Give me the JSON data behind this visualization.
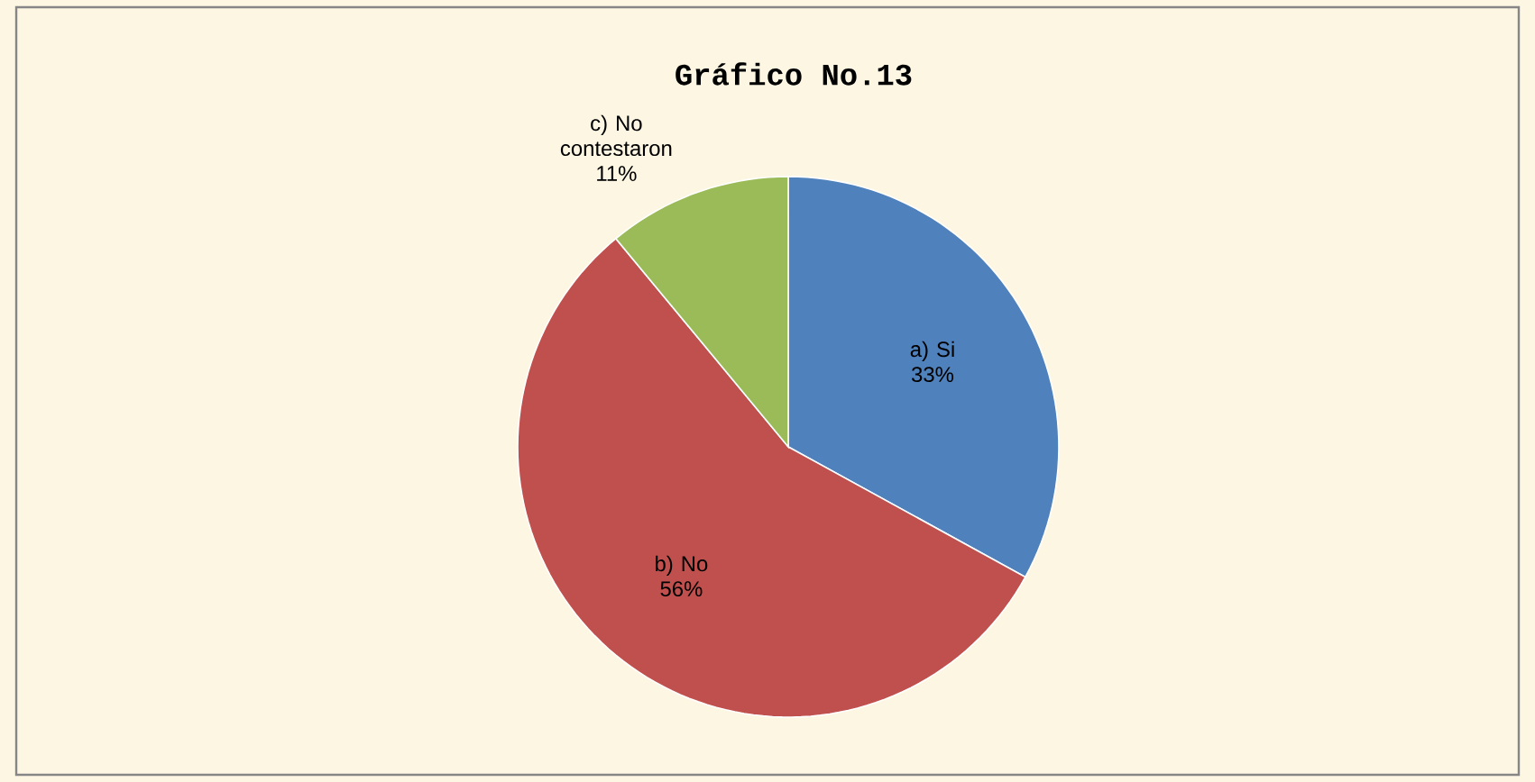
{
  "chart_data": {
    "type": "pie",
    "title": "Gráfico No.13",
    "categories": [
      "a) Si",
      "b) No",
      "c) No contestaron"
    ],
    "values": [
      33,
      56,
      11
    ],
    "colors": [
      "#4f81bd",
      "#c0504d",
      "#9bbb59"
    ],
    "value_labels": [
      "33%",
      "56%",
      "11%"
    ]
  }
}
